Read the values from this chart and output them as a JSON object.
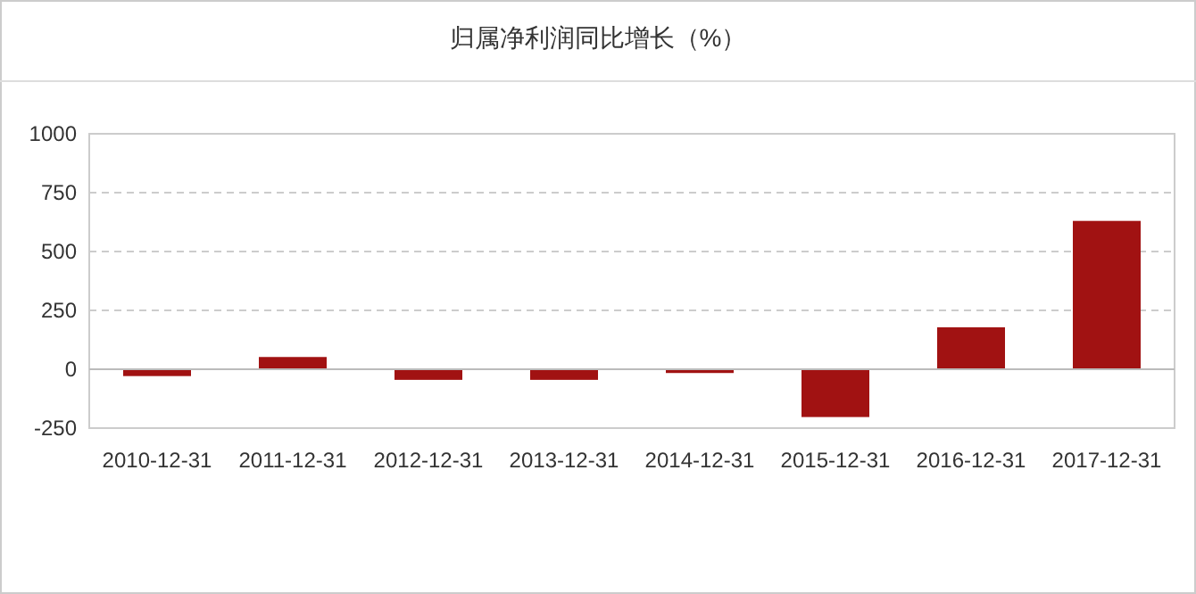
{
  "chart_data": {
    "type": "bar",
    "title": "归属净利润同比增长（%）",
    "categories": [
      "2010-12-31",
      "2011-12-31",
      "2012-12-31",
      "2013-12-31",
      "2014-12-31",
      "2015-12-31",
      "2016-12-31",
      "2017-12-31"
    ],
    "values": [
      -29,
      52,
      -45,
      -45,
      -16,
      -203,
      178,
      630
    ],
    "color": "#a11212",
    "ylim": [
      -250,
      1000
    ],
    "yticks": [
      -250,
      0,
      250,
      500,
      750,
      1000
    ],
    "grid": "y"
  }
}
